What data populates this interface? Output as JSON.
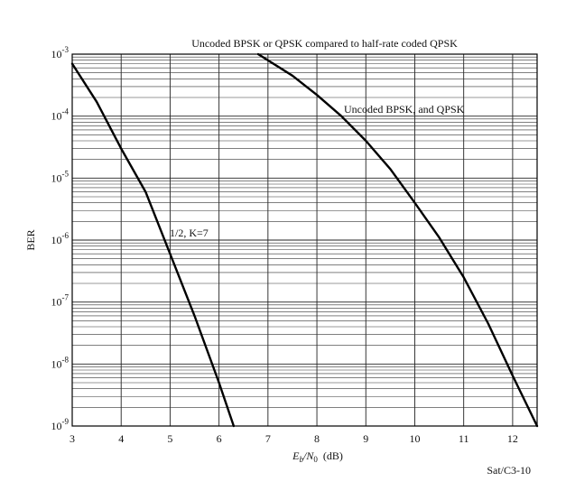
{
  "chart_data": {
    "type": "line",
    "title": "Uncoded BPSK or QPSK compared to half-rate coded QPSK",
    "xlabel": {
      "main": "E",
      "sub1": "b",
      "slash": "/N",
      "sub2": "0",
      "unit": "(dB)"
    },
    "ylabel": "BER",
    "xlim": [
      3,
      12.5
    ],
    "ylim": [
      1e-09,
      0.001
    ],
    "yscale": "log",
    "grid": true,
    "x_ticks": [
      "3",
      "4",
      "5",
      "6",
      "7",
      "8",
      "9",
      "10",
      "11",
      "12"
    ],
    "y_ticks": [
      {
        "base": "10",
        "exp": "-3"
      },
      {
        "base": "10",
        "exp": "-4"
      },
      {
        "base": "10",
        "exp": "-5"
      },
      {
        "base": "10",
        "exp": "-6"
      },
      {
        "base": "10",
        "exp": "-7"
      },
      {
        "base": "10",
        "exp": "-8"
      },
      {
        "base": "10",
        "exp": "-9"
      }
    ],
    "series": [
      {
        "name": "Uncoded BPSK, and QPSK",
        "x": [
          6.8,
          7.5,
          8.0,
          8.5,
          9.0,
          9.5,
          10.0,
          10.5,
          11.0,
          11.5,
          12.0,
          12.5
        ],
        "y": [
          0.001,
          0.00045,
          0.00022,
          0.0001,
          4e-05,
          1.4e-05,
          4e-06,
          1.1e-06,
          2.5e-07,
          4.5e-08,
          6.5e-09,
          1e-09
        ]
      },
      {
        "name": "1/2, K=7",
        "x": [
          3.0,
          3.5,
          4.0,
          4.5,
          5.0,
          5.5,
          6.0,
          6.3
        ],
        "y": [
          0.0007,
          0.00017,
          3e-05,
          6e-06,
          6e-07,
          6e-08,
          5e-09,
          1e-09
        ]
      }
    ],
    "figure_id": "Sat/C3-10"
  }
}
